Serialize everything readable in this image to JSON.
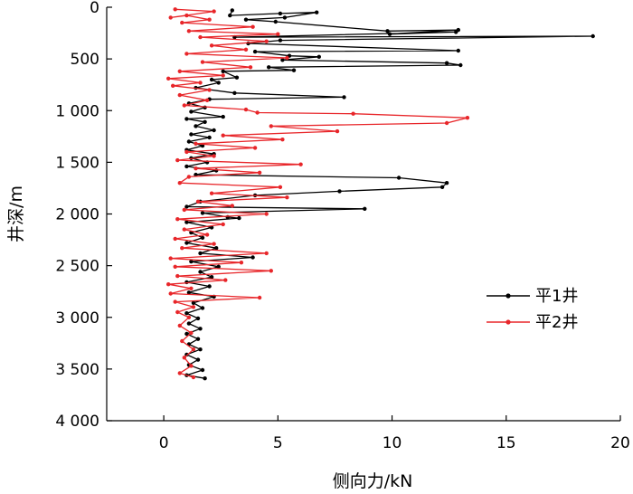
{
  "chart_data": {
    "type": "line",
    "xlabel": "侧向力/kN",
    "ylabel": "井深/m",
    "xlim": [
      -2.5,
      20
    ],
    "ylim": [
      0,
      4000
    ],
    "y_inverted": true,
    "x_ticks": [
      0,
      5,
      10,
      15,
      20
    ],
    "x_tick_labels": [
      "0",
      "5",
      "10",
      "15",
      "20"
    ],
    "y_ticks": [
      0,
      500,
      1000,
      1500,
      2000,
      2500,
      3000,
      3500,
      4000
    ],
    "y_tick_labels": [
      "0",
      "500",
      "1 000",
      "1 500",
      "2 000",
      "2 500",
      "3 000",
      "3 500",
      "4 000"
    ],
    "legend_position": "right",
    "series": [
      {
        "name": "平1井",
        "color": "#000000",
        "points": [
          [
            3.0,
            30
          ],
          [
            2.9,
            80
          ],
          [
            5.1,
            60
          ],
          [
            6.7,
            50
          ],
          [
            5.3,
            100
          ],
          [
            3.6,
            120
          ],
          [
            4.9,
            140
          ],
          [
            9.8,
            230
          ],
          [
            12.9,
            220
          ],
          [
            9.9,
            260
          ],
          [
            12.8,
            240
          ],
          [
            3.1,
            290
          ],
          [
            18.8,
            280
          ],
          [
            5.1,
            320
          ],
          [
            3.7,
            350
          ],
          [
            12.9,
            420
          ],
          [
            4.0,
            430
          ],
          [
            5.5,
            470
          ],
          [
            6.8,
            480
          ],
          [
            5.2,
            510
          ],
          [
            12.4,
            540
          ],
          [
            13.0,
            560
          ],
          [
            4.6,
            580
          ],
          [
            5.7,
            610
          ],
          [
            2.6,
            620
          ],
          [
            3.2,
            680
          ],
          [
            2.1,
            700
          ],
          [
            2.4,
            730
          ],
          [
            1.4,
            780
          ],
          [
            3.1,
            830
          ],
          [
            7.9,
            870
          ],
          [
            2.0,
            890
          ],
          [
            1.1,
            930
          ],
          [
            1.8,
            970
          ],
          [
            1.2,
            1010
          ],
          [
            2.6,
            1060
          ],
          [
            1.0,
            1080
          ],
          [
            1.8,
            1110
          ],
          [
            1.4,
            1150
          ],
          [
            2.2,
            1190
          ],
          [
            1.2,
            1230
          ],
          [
            2.0,
            1260
          ],
          [
            1.1,
            1300
          ],
          [
            1.7,
            1340
          ],
          [
            1.0,
            1380
          ],
          [
            2.2,
            1420
          ],
          [
            1.2,
            1460
          ],
          [
            1.9,
            1500
          ],
          [
            1.0,
            1540
          ],
          [
            2.3,
            1580
          ],
          [
            1.4,
            1620
          ],
          [
            10.3,
            1650
          ],
          [
            12.4,
            1700
          ],
          [
            12.2,
            1740
          ],
          [
            7.7,
            1780
          ],
          [
            4.0,
            1820
          ],
          [
            1.6,
            1880
          ],
          [
            1.0,
            1930
          ],
          [
            8.8,
            1950
          ],
          [
            1.7,
            1990
          ],
          [
            2.8,
            2030
          ],
          [
            3.3,
            2040
          ],
          [
            1.0,
            2080
          ],
          [
            2.1,
            2130
          ],
          [
            1.2,
            2180
          ],
          [
            1.7,
            2230
          ],
          [
            1.0,
            2280
          ],
          [
            2.3,
            2330
          ],
          [
            1.6,
            2380
          ],
          [
            3.9,
            2420
          ],
          [
            1.2,
            2460
          ],
          [
            2.4,
            2510
          ],
          [
            1.6,
            2560
          ],
          [
            2.1,
            2610
          ],
          [
            1.0,
            2660
          ],
          [
            2.0,
            2700
          ],
          [
            1.1,
            2760
          ],
          [
            2.2,
            2800
          ],
          [
            1.3,
            2860
          ],
          [
            1.7,
            2910
          ],
          [
            1.0,
            2960
          ],
          [
            1.5,
            3010
          ],
          [
            1.1,
            3060
          ],
          [
            1.6,
            3110
          ],
          [
            1.0,
            3160
          ],
          [
            1.5,
            3210
          ],
          [
            1.1,
            3260
          ],
          [
            1.6,
            3310
          ],
          [
            1.0,
            3360
          ],
          [
            1.5,
            3410
          ],
          [
            1.1,
            3460
          ],
          [
            1.7,
            3510
          ],
          [
            1.0,
            3560
          ],
          [
            1.8,
            3590
          ]
        ]
      },
      {
        "name": "平2井",
        "color": "#e8262a",
        "points": [
          [
            0.5,
            20
          ],
          [
            2.2,
            40
          ],
          [
            0.3,
            100
          ],
          [
            1.0,
            80
          ],
          [
            2.0,
            120
          ],
          [
            0.8,
            150
          ],
          [
            3.9,
            190
          ],
          [
            1.1,
            230
          ],
          [
            5.0,
            260
          ],
          [
            1.6,
            290
          ],
          [
            4.5,
            330
          ],
          [
            2.1,
            370
          ],
          [
            3.6,
            410
          ],
          [
            1.0,
            450
          ],
          [
            5.4,
            490
          ],
          [
            1.7,
            530
          ],
          [
            3.8,
            580
          ],
          [
            0.7,
            620
          ],
          [
            2.6,
            660
          ],
          [
            0.2,
            690
          ],
          [
            1.6,
            730
          ],
          [
            0.4,
            760
          ],
          [
            2.0,
            800
          ],
          [
            0.7,
            850
          ],
          [
            1.9,
            900
          ],
          [
            0.9,
            950
          ],
          [
            3.6,
            990
          ],
          [
            4.1,
            1020
          ],
          [
            8.3,
            1030
          ],
          [
            13.3,
            1070
          ],
          [
            12.4,
            1120
          ],
          [
            4.7,
            1150
          ],
          [
            7.6,
            1200
          ],
          [
            2.6,
            1240
          ],
          [
            5.2,
            1280
          ],
          [
            1.4,
            1320
          ],
          [
            4.0,
            1360
          ],
          [
            1.0,
            1400
          ],
          [
            2.2,
            1440
          ],
          [
            0.6,
            1480
          ],
          [
            6.0,
            1520
          ],
          [
            1.4,
            1560
          ],
          [
            4.2,
            1600
          ],
          [
            1.1,
            1640
          ],
          [
            0.7,
            1700
          ],
          [
            5.1,
            1740
          ],
          [
            2.1,
            1800
          ],
          [
            5.4,
            1840
          ],
          [
            1.5,
            1880
          ],
          [
            3.0,
            1920
          ],
          [
            0.9,
            1960
          ],
          [
            4.5,
            2000
          ],
          [
            0.6,
            2050
          ],
          [
            2.6,
            2100
          ],
          [
            0.9,
            2150
          ],
          [
            1.9,
            2200
          ],
          [
            0.5,
            2240
          ],
          [
            2.2,
            2290
          ],
          [
            0.8,
            2330
          ],
          [
            4.5,
            2380
          ],
          [
            0.3,
            2430
          ],
          [
            3.4,
            2470
          ],
          [
            0.5,
            2510
          ],
          [
            4.7,
            2550
          ],
          [
            0.6,
            2600
          ],
          [
            2.7,
            2640
          ],
          [
            0.2,
            2680
          ],
          [
            1.2,
            2720
          ],
          [
            0.3,
            2770
          ],
          [
            4.2,
            2810
          ],
          [
            0.5,
            2850
          ],
          [
            1.3,
            2900
          ],
          [
            0.6,
            2950
          ],
          [
            1.1,
            3000
          ],
          [
            0.7,
            3080
          ],
          [
            1.2,
            3150
          ],
          [
            0.8,
            3230
          ],
          [
            1.3,
            3310
          ],
          [
            0.9,
            3390
          ],
          [
            1.2,
            3470
          ],
          [
            0.7,
            3540
          ],
          [
            1.3,
            3580
          ]
        ]
      }
    ]
  }
}
